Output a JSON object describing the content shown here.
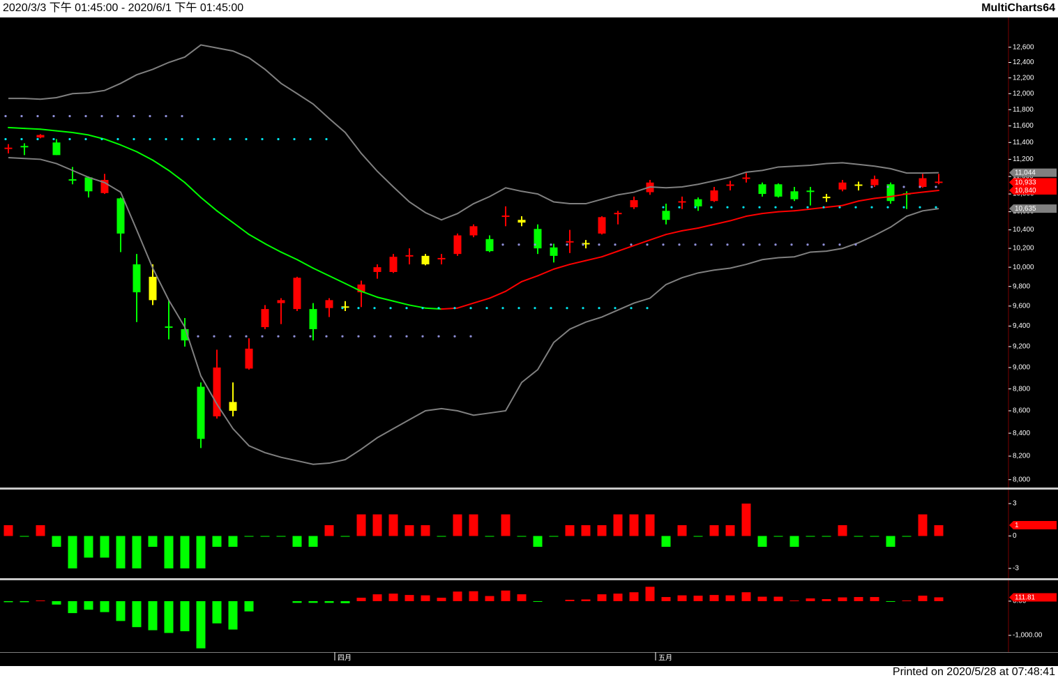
{
  "header": {
    "title": "2020/3/3 下午 01:45:00 - 2020/6/1 下午 01:45:00",
    "brand": "MultiCharts64"
  },
  "footer": "Printed on 2020/5/28 at 07:48:41",
  "chart_data": [
    {
      "type": "candlestick",
      "log_scale": true,
      "categories": [
        null,
        null,
        null,
        null,
        null,
        null,
        null,
        null,
        null,
        null,
        null,
        null,
        null,
        null,
        null,
        null,
        null,
        null,
        null,
        null,
        null,
        "四月",
        null,
        null,
        null,
        null,
        null,
        null,
        null,
        null,
        null,
        null,
        null,
        null,
        null,
        null,
        null,
        null,
        null,
        null,
        null,
        "五月",
        null,
        null,
        null,
        null,
        null,
        null,
        null,
        null,
        null,
        null,
        null,
        null,
        null,
        null,
        null,
        null,
        null
      ],
      "open": [
        11330,
        11350,
        11460,
        11400,
        10960,
        10990,
        10810,
        10750,
        10030,
        9660,
        9390,
        9370,
        8820,
        8550,
        8600,
        8990,
        9390,
        9630,
        9570,
        9570,
        9580,
        9590,
        9740,
        9950,
        9950,
        10120,
        10030,
        10090,
        10140,
        10340,
        10300,
        10550,
        10480,
        10410,
        10210,
        10270,
        10250,
        10360,
        10580,
        10650,
        10820,
        10610,
        10710,
        10740,
        10720,
        10900,
        10980,
        10910,
        10910,
        10830,
        10830,
        10760,
        10850,
        10900,
        10900,
        10910,
        10800,
        10880,
        10933
      ],
      "high": [
        11380,
        11390,
        11500,
        11440,
        11110,
        11000,
        11030,
        10760,
        10140,
        10030,
        9660,
        9480,
        8860,
        9170,
        8860,
        9280,
        9610,
        9680,
        9900,
        9630,
        9680,
        9650,
        9860,
        10030,
        10140,
        10200,
        10140,
        10140,
        10360,
        10460,
        10340,
        10660,
        10550,
        10460,
        10250,
        10400,
        10290,
        10550,
        10610,
        10770,
        10960,
        10690,
        10770,
        10760,
        10880,
        10950,
        11040,
        10930,
        10920,
        10880,
        10880,
        10800,
        10960,
        10940,
        11010,
        10930,
        10830,
        11030,
        11030
      ],
      "low": [
        11270,
        11250,
        11450,
        11250,
        10910,
        10760,
        10800,
        10160,
        9440,
        9610,
        9270,
        9200,
        8270,
        8530,
        8550,
        8980,
        9370,
        9420,
        9550,
        9260,
        9490,
        9550,
        9590,
        9880,
        9940,
        10030,
        10020,
        10030,
        10120,
        10320,
        10160,
        10440,
        10440,
        10140,
        10050,
        10150,
        10200,
        10350,
        10460,
        10630,
        10790,
        10460,
        10630,
        10610,
        10710,
        10840,
        10930,
        10770,
        10760,
        10720,
        10670,
        10710,
        10830,
        10840,
        10880,
        10690,
        10630,
        10870,
        10910
      ],
      "close": [
        11330,
        11350,
        11490,
        11250,
        10960,
        10830,
        10960,
        10360,
        9740,
        9900,
        9390,
        9260,
        8350,
        9000,
        8680,
        9180,
        9570,
        9660,
        9890,
        9370,
        9660,
        9590,
        9820,
        10000,
        10110,
        10120,
        10120,
        10090,
        10340,
        10440,
        10170,
        10550,
        10510,
        10200,
        10120,
        10270,
        10250,
        10540,
        10580,
        10730,
        10930,
        10510,
        10710,
        10660,
        10840,
        10900,
        10980,
        10800,
        10770,
        10740,
        10830,
        10760,
        10930,
        10900,
        10970,
        10720,
        10800,
        10980,
        10933
      ],
      "candle_colors": [
        "#ff0000",
        "#00ff00",
        "#ff0000",
        "#00ff00",
        "#00ff00",
        "#00ff00",
        "#ff0000",
        "#00ff00",
        "#00ff00",
        "#ffff00",
        "#00ff00",
        "#00ff00",
        "#00ff00",
        "#ff0000",
        "#ffff00",
        "#ff0000",
        "#ff0000",
        "#ff0000",
        "#ff0000",
        "#00ff00",
        "#ff0000",
        "#ffff00",
        "#ff0000",
        "#ff0000",
        "#ff0000",
        "#ff0000",
        "#ffff00",
        "#ff0000",
        "#ff0000",
        "#ff0000",
        "#00ff00",
        "#ff0000",
        "#ffff00",
        "#00ff00",
        "#00ff00",
        "#ff0000",
        "#ffff00",
        "#ff0000",
        "#ff0000",
        "#ff0000",
        "#ff0000",
        "#00ff00",
        "#ff0000",
        "#00ff00",
        "#ff0000",
        "#ff0000",
        "#ff0000",
        "#00ff00",
        "#00ff00",
        "#00ff00",
        "#00ff00",
        "#ffff00",
        "#ff0000",
        "#ffff00",
        "#ff0000",
        "#00ff00",
        "#00ff00",
        "#ff0000",
        "#ff0000"
      ],
      "series": [
        {
          "style": "line",
          "color": "#808080",
          "values": [
            11940,
            11940,
            11930,
            11950,
            12000,
            12010,
            12040,
            12130,
            12240,
            12310,
            12400,
            12470,
            12630,
            12590,
            12550,
            12460,
            12310,
            12130,
            12000,
            11870,
            11690,
            11520,
            11270,
            11060,
            10880,
            10710,
            10590,
            10510,
            10580,
            10690,
            10770,
            10870,
            10830,
            10800,
            10710,
            10690,
            10690,
            10740,
            10790,
            10820,
            10880,
            10870,
            10880,
            10910,
            10950,
            10990,
            11050,
            11070,
            11110,
            11120,
            11130,
            11150,
            11160,
            11140,
            11120,
            11090,
            11040,
            11040,
            11044
          ]
        },
        {
          "style": "line",
          "color": "#808080",
          "values": [
            11220,
            11210,
            11200,
            11150,
            11070,
            10990,
            10930,
            10820,
            10400,
            9990,
            9660,
            9390,
            8920,
            8660,
            8440,
            8290,
            8230,
            8190,
            8160,
            8130,
            8140,
            8170,
            8260,
            8360,
            8440,
            8520,
            8600,
            8620,
            8600,
            8560,
            8580,
            8600,
            8860,
            8980,
            9240,
            9370,
            9440,
            9490,
            9560,
            9630,
            9680,
            9820,
            9890,
            9940,
            9970,
            9990,
            10030,
            10080,
            10100,
            10110,
            10160,
            10170,
            10200,
            10260,
            10340,
            10430,
            10550,
            10610,
            10635
          ]
        },
        {
          "style": "line",
          "color": "#ff0000",
          "color_falling": "#00ff00",
          "values": [
            11580,
            11570,
            11560,
            11540,
            11520,
            11490,
            11440,
            11370,
            11290,
            11190,
            11070,
            10930,
            10760,
            10610,
            10480,
            10350,
            10250,
            10160,
            10080,
            9990,
            9910,
            9830,
            9750,
            9690,
            9650,
            9610,
            9580,
            9570,
            9580,
            9630,
            9680,
            9750,
            9850,
            9910,
            9980,
            10030,
            10070,
            10110,
            10170,
            10230,
            10290,
            10350,
            10390,
            10420,
            10460,
            10500,
            10550,
            10580,
            10600,
            10610,
            10630,
            10650,
            10670,
            10720,
            10750,
            10770,
            10800,
            10820,
            10840
          ]
        },
        {
          "style": "dots",
          "color": "#8f8fd8",
          "values": [
            11720,
            11720,
            11720,
            11720,
            11720,
            11720,
            11720,
            11720,
            11720,
            11720,
            11720,
            11720,
            9300,
            9300,
            9300,
            9300,
            9300,
            9300,
            9300,
            9300,
            9300,
            9300,
            9300,
            9300,
            9300,
            9300,
            9300,
            9300,
            9300,
            9300,
            null,
            10240,
            10240,
            10240,
            10240,
            10240,
            10240,
            10240,
            10240,
            10240,
            10240,
            10240,
            10240,
            10240,
            10240,
            10240,
            10240,
            10240,
            10240,
            10240,
            10240,
            10240,
            10240,
            10240,
            10880,
            10880,
            10880,
            10880,
            10880
          ]
        },
        {
          "style": "dots",
          "color": "#00e5ee",
          "values": [
            11440,
            11440,
            11440,
            11440,
            11440,
            11440,
            11440,
            11440,
            11440,
            11440,
            11440,
            11440,
            11440,
            11440,
            11440,
            11440,
            11440,
            11440,
            11440,
            11440,
            11440,
            9580,
            9580,
            9580,
            9580,
            9580,
            9580,
            9580,
            9580,
            9580,
            9580,
            9580,
            9580,
            9580,
            9580,
            9580,
            9580,
            9580,
            9580,
            9580,
            9580,
            10650,
            10650,
            10650,
            10650,
            10650,
            10650,
            10650,
            10650,
            10650,
            10650,
            10650,
            10650,
            10650,
            10650,
            10650,
            10650,
            10650,
            10650
          ]
        }
      ],
      "ylim": [
        7940,
        13000
      ],
      "yticks": [
        {
          "value": 8000,
          "label": "8,000"
        },
        {
          "value": 8200,
          "label": "8,200"
        },
        {
          "value": 8400,
          "label": "8,400"
        },
        {
          "value": 8600,
          "label": "8,600"
        },
        {
          "value": 8800,
          "label": "8,800"
        },
        {
          "value": 9000,
          "label": "9,000"
        },
        {
          "value": 9200,
          "label": "9,200"
        },
        {
          "value": 9400,
          "label": "9,400"
        },
        {
          "value": 9600,
          "label": "9,600"
        },
        {
          "value": 9800,
          "label": "9,800"
        },
        {
          "value": 10000,
          "label": "10,000"
        },
        {
          "value": 10200,
          "label": "10,200"
        },
        {
          "value": 10400,
          "label": "10,400"
        },
        {
          "value": 10600,
          "label": "10,600"
        },
        {
          "value": 10800,
          "label": "10,800"
        },
        {
          "value": 11000,
          "label": "11,000"
        },
        {
          "value": 11200,
          "label": "11,200"
        },
        {
          "value": 11400,
          "label": "11,400"
        },
        {
          "value": 11600,
          "label": "11,600"
        },
        {
          "value": 11800,
          "label": "11,800"
        },
        {
          "value": 12000,
          "label": "12,000"
        },
        {
          "value": 12200,
          "label": "12,200"
        },
        {
          "value": 12400,
          "label": "12,400"
        },
        {
          "value": 12600,
          "label": "12,600"
        }
      ],
      "markers": [
        {
          "value": 11044,
          "label": "11,044",
          "color": "#808080"
        },
        {
          "value": 10933,
          "label": "10,933",
          "color": "#ff0000"
        },
        {
          "value": 10840,
          "label": "10,840",
          "color": "#ff0000"
        },
        {
          "value": 10635,
          "label": "10,635",
          "color": "#808080"
        }
      ]
    },
    {
      "type": "bar",
      "color_up": "#ff0000",
      "color_down": "#00ff00",
      "values": [
        1,
        0,
        1,
        -1,
        -3,
        -2,
        -2,
        -3,
        -3,
        -1,
        -3,
        -3,
        -3,
        -1,
        -1,
        0,
        0,
        0,
        -1,
        -1,
        1,
        0,
        2,
        2,
        2,
        1,
        1,
        0,
        2,
        2,
        0,
        2,
        0,
        -1,
        0,
        1,
        1,
        1,
        2,
        2,
        2,
        -1,
        1,
        0,
        1,
        1,
        3,
        -1,
        0,
        -1,
        0,
        0,
        1,
        0,
        0,
        -1,
        0,
        2,
        1
      ],
      "ylim": [
        -3.84,
        4.23
      ],
      "yticks": [
        -3,
        0,
        3
      ],
      "markers": [
        {
          "value": 1,
          "label": "1",
          "color": "#ff0000"
        }
      ]
    },
    {
      "type": "bar",
      "color_up": "#ff0000",
      "color_down": "#00ff00",
      "values": [
        -30,
        -30,
        20,
        -100,
        -350,
        -250,
        -320,
        -580,
        -760,
        -850,
        -930,
        -880,
        -1380,
        -650,
        -830,
        -300,
        null,
        null,
        -50,
        -50,
        -50,
        -60,
        100,
        200,
        220,
        180,
        170,
        100,
        280,
        290,
        150,
        310,
        200,
        -20,
        null,
        40,
        50,
        200,
        220,
        260,
        420,
        120,
        170,
        160,
        180,
        170,
        260,
        130,
        130,
        20,
        80,
        60,
        110,
        120,
        120,
        -20,
        20,
        160,
        111.81
      ],
      "ylim": [
        -1490,
        590
      ],
      "yticks": [
        {
          "value": -1000,
          "label": "-1,000.00"
        },
        {
          "value": 0,
          "label": "0.00"
        }
      ],
      "markers": [
        {
          "value": 111.81,
          "label": "111.81",
          "color": "#ff0000"
        }
      ]
    }
  ]
}
